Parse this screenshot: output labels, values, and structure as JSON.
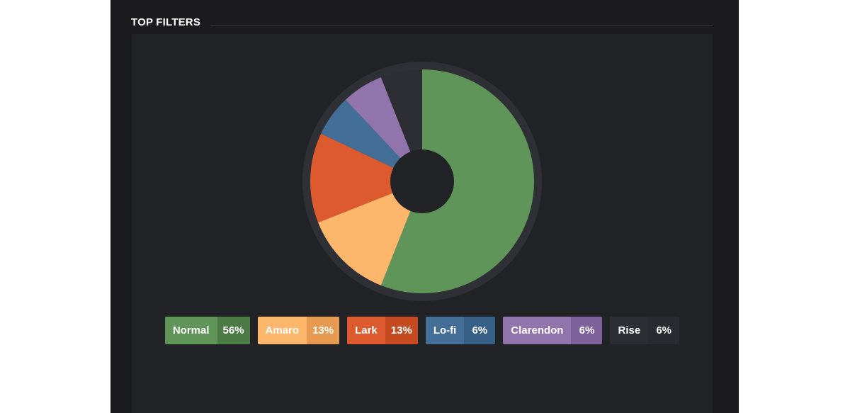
{
  "panel": {
    "title": "TOP FILTERS"
  },
  "chart_data": {
    "type": "pie",
    "title": "TOP FILTERS",
    "slices": [
      {
        "name": "Normal",
        "value": 56,
        "label": "56%",
        "color": "#5f9558",
        "shade": "#4b7a45"
      },
      {
        "name": "Amaro",
        "value": 13,
        "label": "13%",
        "color": "#fdb76d",
        "shade": "#e59a50"
      },
      {
        "name": "Lark",
        "value": 13,
        "label": "13%",
        "color": "#dd5a2e",
        "shade": "#c54a22"
      },
      {
        "name": "Lo-fi",
        "value": 6,
        "label": "6%",
        "color": "#426e98",
        "shade": "#365f86"
      },
      {
        "name": "Clarendon",
        "value": 6,
        "label": "6%",
        "color": "#9174ab",
        "shade": "#7e619a"
      },
      {
        "name": "Rise",
        "value": 6,
        "label": "6%",
        "color": "#2d2e33",
        "shade": "#2a2b30"
      }
    ],
    "legend_position": "bottom",
    "colors": {
      "ring": "#2f3035",
      "hole": "#222327"
    }
  }
}
